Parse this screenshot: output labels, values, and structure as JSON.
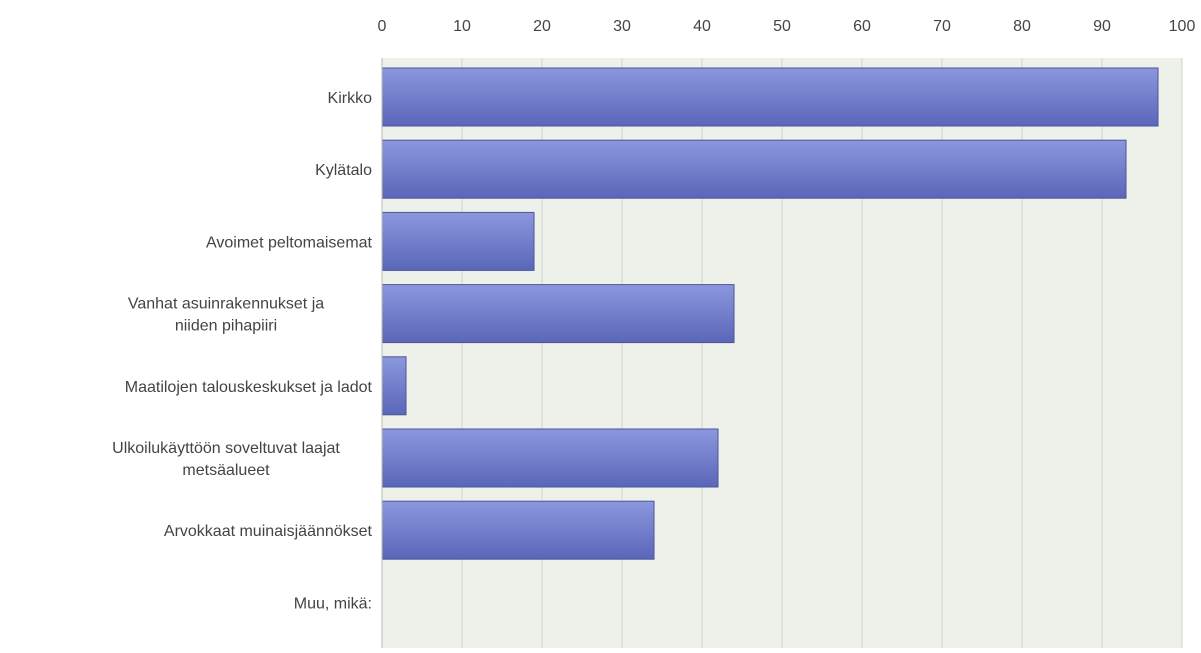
{
  "chart_data": {
    "type": "bar",
    "orientation": "horizontal",
    "categories": [
      [
        "Kirkko"
      ],
      [
        "Kylätalo"
      ],
      [
        "Avoimet peltomaisemat"
      ],
      [
        "Vanhat asuinrakennukset ja",
        "niiden pihapiiri"
      ],
      [
        "Maatilojen talouskeskukset ja ladot"
      ],
      [
        "Ulkoilukäyttöön soveltuvat laajat",
        "metsäalueet"
      ],
      [
        "Arvokkaat muinaisjäännökset"
      ],
      [
        "Muu, mikä:"
      ]
    ],
    "values": [
      97,
      93,
      19,
      44,
      3,
      42,
      34,
      0
    ],
    "xlim": [
      0,
      100
    ],
    "xticks": [
      0,
      10,
      20,
      30,
      40,
      50,
      60,
      70,
      80,
      90,
      100
    ],
    "x_axis_position": "top",
    "grid": true,
    "title": "",
    "xlabel": "",
    "ylabel": "",
    "colors": {
      "bar_top": "#8b98dd",
      "bar_bottom": "#5a66b8",
      "bar_border": "#4b559c",
      "plot_background": "#eef0ea",
      "grid": "#d2d4cc"
    }
  }
}
